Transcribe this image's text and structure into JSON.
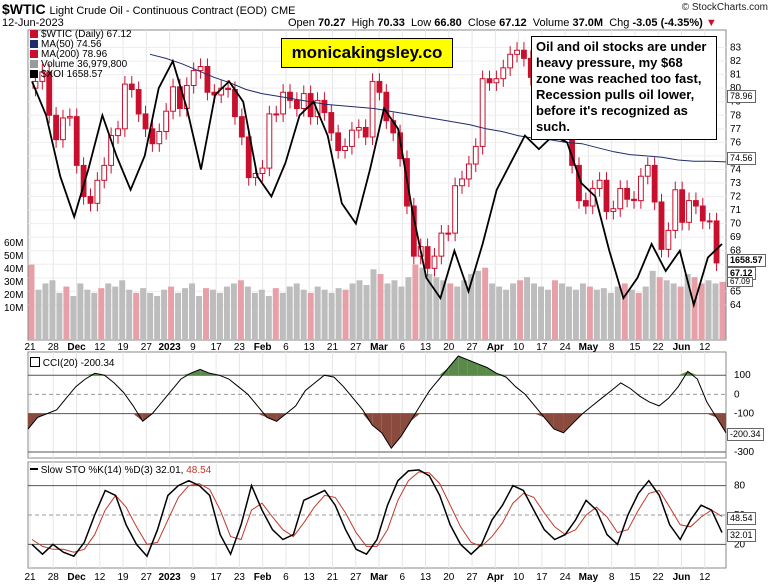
{
  "header": {
    "symbol": "$WTIC",
    "name": "Light Crude Oil - Continuous Contract (EOD)",
    "exchange": "CME",
    "date": "12-Jun-2023",
    "open_label": "Open",
    "open": "70.27",
    "high_label": "High",
    "high": "70.33",
    "low_label": "Low",
    "low": "66.80",
    "close_label": "Close",
    "close": "67.12",
    "volume_label": "Volume",
    "volume": "37.0M",
    "chg_label": "Chg",
    "chg": "-3.05 (-4.35%)",
    "copyright": "© StockCharts.com"
  },
  "brand": "monicakingsley.co",
  "note": "Oil and oil stocks are under heavy pressure, my $68 zone was reached too fast, Recession pulls oil lower, before it's recognized as such.",
  "legend": [
    {
      "text": "$WTIC (Daily) 67.12",
      "color": "#c8102e"
    },
    {
      "text": "MA(50) 74.56",
      "color": "#1f2d6b"
    },
    {
      "text": "MA(200) 78.96",
      "color": "#c8102e"
    },
    {
      "text": "Volume 36,979,800",
      "color": "#999999"
    },
    {
      "text": "$XOI 1658.57",
      "color": "#000000"
    }
  ],
  "price_tags": {
    "ma200": "78.96",
    "ma50": "74.56",
    "xoi": "1658.57",
    "close": "67.12",
    "extra": "67.09"
  },
  "vol_axis": [
    "60M",
    "50M",
    "40M",
    "30M",
    "20M",
    "10M"
  ],
  "cci_label": "CCI(20) -200.34",
  "cci_tag": "-200.34",
  "sto_label": "Slow STO %K(14) %D(3) 32.01,",
  "sto_d": "48.54",
  "sto_tags": {
    "d": "48.54",
    "k": "32.01"
  },
  "colors": {
    "up": "#c8102e",
    "down": "#c8102e",
    "ma50": "#1f2d6b",
    "ma200": "#c8102e",
    "xoi": "#000000",
    "vol": "#bdbdbd",
    "volred": "#e8a0a8",
    "cci_pos": "#5a8a4a",
    "cci_neg": "#8a4a3e",
    "k": "#000000",
    "d": "#c0392b"
  },
  "x_labels": [
    "21",
    "28",
    "Dec",
    "12",
    "19",
    "27",
    "2023",
    "9",
    "17",
    "23",
    "Feb",
    "6",
    "13",
    "21",
    "27",
    "Mar",
    "6",
    "13",
    "20",
    "27",
    "Apr",
    "10",
    "17",
    "24",
    "May",
    "8",
    "15",
    "22",
    "Jun",
    "12"
  ],
  "chart_data": [
    {
      "type": "line",
      "title": "$WTIC Light Crude Oil - Continuous Contract (EOD)",
      "ylim": [
        62,
        84
      ],
      "yticks": [
        64,
        65,
        66,
        67,
        68,
        69,
        70,
        71,
        72,
        73,
        74,
        75,
        76,
        77,
        78,
        79,
        80,
        81,
        82,
        83
      ],
      "series": [
        {
          "name": "$WTIC (Daily)",
          "values": [
            80.5,
            81.2,
            78.0,
            76.2,
            77.8,
            77.9,
            74.3,
            72.0,
            71.5,
            73.2,
            74.3,
            76.5,
            77.0,
            80.3,
            79.9,
            78.1,
            77.0,
            75.9,
            76.8,
            78.3,
            80.1,
            78.5,
            80.2,
            81.3,
            81.6,
            79.7,
            79.5,
            80.0,
            79.9,
            77.9,
            76.4,
            73.4,
            73.7,
            74.1,
            78.1,
            78.1,
            79.7,
            79.1,
            78.5,
            79.6,
            77.9,
            79.1,
            78.2,
            76.7,
            75.4,
            75.7,
            76.9,
            77.1,
            76.4,
            80.5,
            79.7,
            77.6,
            76.7,
            74.8,
            71.3,
            67.6,
            68.3,
            66.7,
            67.6,
            69.3,
            69.3,
            72.8,
            73.3,
            74.4,
            75.7,
            80.7,
            80.4,
            80.7,
            81.5,
            82.5,
            82.8,
            82.2,
            80.8,
            79.4,
            77.4,
            78.8,
            77.1,
            76.6,
            74.3,
            71.7,
            71.3,
            72.6,
            73.2,
            70.9,
            71.1,
            72.6,
            71.8,
            71.7,
            73.5,
            74.3,
            71.6,
            68.1,
            69.5,
            72.5,
            70.1,
            71.7,
            71.3,
            70.2,
            70.2,
            67.1
          ]
        },
        {
          "name": "MA(50)",
          "values": [
            82.5,
            82.2,
            81.8,
            81.3,
            80.8,
            80.4,
            79.9,
            79.6,
            79.4,
            79.2,
            79.0,
            78.8,
            78.7,
            78.6,
            78.5,
            78.3,
            78.1,
            77.9,
            77.7,
            77.5,
            77.3,
            77.0,
            76.8,
            76.5,
            76.3,
            76.2,
            76.0,
            75.9,
            75.6,
            75.3,
            75.1,
            75.0,
            74.9,
            74.7,
            74.6,
            74.6,
            74.56
          ]
        },
        {
          "name": "$XOI",
          "values": [
            80.5,
            78.0,
            73.5,
            70.5,
            74.0,
            78.0,
            75.0,
            72.5,
            75.0,
            80.0,
            82.0,
            78.5,
            74.0,
            79.5,
            80.5,
            79.0,
            73.5,
            72.0,
            74.5,
            78.0,
            79.0,
            76.5,
            71.5,
            70.0,
            74.0,
            78.5,
            77.0,
            71.0,
            66.0,
            64.5,
            68.0,
            65.0,
            68.5,
            72.5,
            74.5,
            76.5,
            75.5,
            76.5,
            76.0,
            73.0,
            72.0,
            68.0,
            64.5,
            66.0,
            68.5,
            66.5,
            68.0,
            64.0,
            67.5,
            68.5
          ]
        }
      ]
    },
    {
      "type": "bar",
      "title": "Volume",
      "ylim": [
        0,
        70
      ],
      "values": [
        48,
        32,
        36,
        38,
        30,
        34,
        28,
        36,
        32,
        30,
        33,
        36,
        34,
        38,
        32,
        30,
        33,
        30,
        28,
        32,
        34,
        30,
        33,
        36,
        28,
        33,
        32,
        30,
        34,
        36,
        38,
        34,
        30,
        32,
        28,
        33,
        30,
        34,
        36,
        32,
        30,
        34,
        32,
        30,
        33,
        32,
        36,
        38,
        35,
        45,
        42,
        36,
        38,
        34,
        40,
        48,
        46,
        42,
        40,
        38,
        36,
        34,
        38,
        42,
        44,
        46,
        36,
        34,
        32,
        36,
        38,
        40,
        36,
        34,
        32,
        38,
        36,
        34,
        32,
        36,
        34,
        32,
        33,
        30,
        34,
        36,
        32,
        30,
        34,
        44,
        40,
        38,
        36,
        34,
        42,
        40,
        36,
        38,
        36,
        37
      ]
    },
    {
      "type": "line",
      "title": "CCI(20)",
      "ylim": [
        -300,
        200
      ],
      "yticks": [
        100,
        0,
        -100,
        -300
      ],
      "series": [
        {
          "name": "CCI(20)",
          "values": [
            -180,
            -120,
            -100,
            -80,
            -20,
            40,
            80,
            110,
            100,
            60,
            10,
            -60,
            -140,
            -100,
            -40,
            20,
            80,
            110,
            130,
            110,
            100,
            80,
            40,
            0,
            -60,
            -120,
            -140,
            -100,
            -60,
            20,
            60,
            100,
            90,
            40,
            -20,
            -80,
            -160,
            -200,
            -280,
            -220,
            -140,
            -60,
            20,
            80,
            140,
            200,
            180,
            160,
            140,
            110,
            90,
            40,
            0,
            -60,
            -120,
            -180,
            -200,
            -150,
            -100,
            -60,
            -20,
            20,
            60,
            30,
            -10,
            -40,
            -60,
            -20,
            40,
            120,
            80,
            -40,
            -120,
            -200
          ]
        }
      ]
    },
    {
      "type": "line",
      "title": "Slow STO %K(14) %D(3)",
      "ylim": [
        0,
        100
      ],
      "yticks": [
        80,
        50,
        20
      ],
      "series": [
        {
          "name": "%K(14)",
          "values": [
            20,
            10,
            20,
            12,
            8,
            22,
            50,
            75,
            70,
            40,
            20,
            8,
            35,
            70,
            80,
            85,
            80,
            70,
            30,
            10,
            40,
            80,
            55,
            35,
            25,
            30,
            65,
            70,
            75,
            60,
            35,
            15,
            10,
            25,
            60,
            85,
            95,
            96,
            90,
            70,
            40,
            20,
            10,
            20,
            45,
            60,
            80,
            75,
            55,
            35,
            25,
            30,
            45,
            65,
            55,
            30,
            20,
            50,
            72,
            85,
            70,
            40,
            25,
            45,
            60,
            55,
            32
          ]
        },
        {
          "name": "%D(3)",
          "values": [
            25,
            18,
            15,
            15,
            12,
            15,
            30,
            55,
            70,
            58,
            38,
            20,
            22,
            45,
            68,
            80,
            82,
            76,
            55,
            28,
            25,
            55,
            62,
            48,
            35,
            28,
            42,
            58,
            70,
            68,
            52,
            32,
            18,
            18,
            35,
            65,
            85,
            94,
            93,
            82,
            60,
            38,
            22,
            18,
            28,
            42,
            62,
            72,
            68,
            52,
            38,
            30,
            35,
            50,
            58,
            48,
            32,
            35,
            55,
            72,
            75,
            58,
            40,
            38,
            48,
            55,
            48.54
          ]
        }
      ]
    }
  ]
}
